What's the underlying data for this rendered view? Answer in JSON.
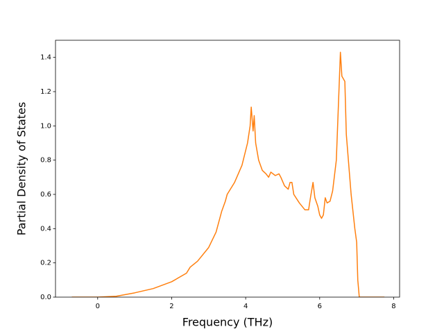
{
  "chart_data": {
    "type": "line",
    "xlabel": "Frequency (THz)",
    "ylabel": "Partial Density of States",
    "x": [
      -0.7,
      0,
      0.5,
      1,
      1.5,
      2,
      2.4,
      2.5,
      2.7,
      3,
      3.2,
      3.35,
      3.45,
      3.5,
      3.7,
      3.9,
      4.05,
      4.12,
      4.15,
      4.2,
      4.23,
      4.27,
      4.35,
      4.45,
      4.55,
      4.62,
      4.68,
      4.8,
      4.9,
      4.95,
      5.05,
      5.15,
      5.2,
      5.25,
      5.3,
      5.45,
      5.6,
      5.7,
      5.75,
      5.82,
      5.87,
      5.95,
      6.0,
      6.05,
      6.1,
      6.15,
      6.2,
      6.28,
      6.35,
      6.45,
      6.52,
      6.56,
      6.6,
      6.68,
      6.72,
      6.85,
      6.95,
      7.0,
      7.03,
      7.07,
      7.75
    ],
    "values": [
      0,
      0,
      0.005,
      0.025,
      0.05,
      0.09,
      0.14,
      0.175,
      0.21,
      0.29,
      0.38,
      0.5,
      0.56,
      0.6,
      0.67,
      0.77,
      0.9,
      1.0,
      1.11,
      0.97,
      1.06,
      0.9,
      0.8,
      0.74,
      0.72,
      0.7,
      0.73,
      0.71,
      0.72,
      0.7,
      0.65,
      0.63,
      0.67,
      0.67,
      0.6,
      0.55,
      0.51,
      0.51,
      0.58,
      0.67,
      0.58,
      0.53,
      0.48,
      0.46,
      0.48,
      0.58,
      0.55,
      0.56,
      0.62,
      0.8,
      1.2,
      1.43,
      1.29,
      1.26,
      0.95,
      0.6,
      0.4,
      0.32,
      0.1,
      0,
      0
    ],
    "color": "#ff7f0e",
    "xlim": [
      -1.14,
      8.16
    ],
    "ylim": [
      0,
      1.5
    ],
    "xticks": [
      0,
      2,
      4,
      6,
      8
    ],
    "yticks": [
      {
        "value": 0,
        "label": "0.0"
      },
      {
        "value": 0.2,
        "label": "0.2"
      },
      {
        "value": 0.4,
        "label": "0.4"
      },
      {
        "value": 0.6,
        "label": "0.6"
      },
      {
        "value": 0.8,
        "label": "0.8"
      },
      {
        "value": 1.0,
        "label": "1.0"
      },
      {
        "value": 1.2,
        "label": "1.2"
      },
      {
        "value": 1.4,
        "label": "1.4"
      }
    ]
  }
}
